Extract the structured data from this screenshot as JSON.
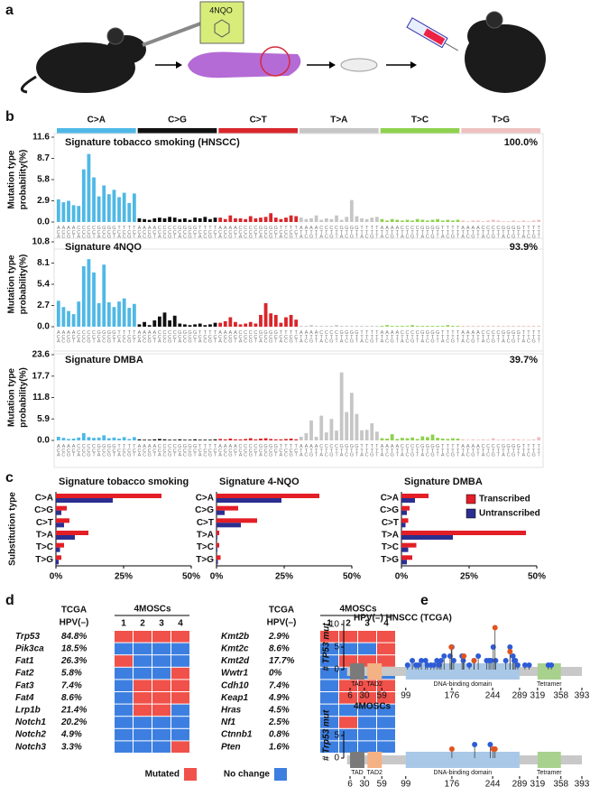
{
  "panel_labels": [
    "a",
    "b",
    "c",
    "d",
    "e"
  ],
  "illustration_label": "4NQO",
  "chart_data": [
    {
      "type": "signature",
      "ylabel": [
        "Mutation type",
        "probability(%)"
      ],
      "groups": [
        {
          "name": "C>A",
          "color": "#4fb8e6"
        },
        {
          "name": "C>G",
          "color": "#111111"
        },
        {
          "name": "C>T",
          "color": "#d9262b"
        },
        {
          "name": "T>A",
          "color": "#c6c6c6"
        },
        {
          "name": "T>C",
          "color": "#8fd14f"
        },
        {
          "name": "T>G",
          "color": "#eec1c1"
        }
      ],
      "categories": [
        "ACA",
        "ACC",
        "ACG",
        "ACT",
        "CCA",
        "CCC",
        "CCG",
        "CCT",
        "GCA",
        "GCC",
        "GCG",
        "GCT",
        "TCA",
        "TCC",
        "TCG",
        "TCT",
        "ACA",
        "ACC",
        "ACG",
        "ACT",
        "CCA",
        "CCC",
        "CCG",
        "CCT",
        "GCA",
        "GCC",
        "GCG",
        "GCT",
        "TCA",
        "TCC",
        "TCG",
        "TCT",
        "ACA",
        "ACC",
        "ACG",
        "ACT",
        "CCA",
        "CCC",
        "CCG",
        "CCT",
        "GCA",
        "GCC",
        "GCG",
        "GCT",
        "TCA",
        "TCC",
        "TCG",
        "TCT",
        "ATA",
        "ATC",
        "ATG",
        "ATT",
        "CTA",
        "CTC",
        "CTG",
        "CTT",
        "GTA",
        "GTC",
        "GTG",
        "GTT",
        "TTA",
        "TTC",
        "TTG",
        "TTT",
        "ATA",
        "ATC",
        "ATG",
        "ATT",
        "CTA",
        "CTC",
        "CTG",
        "CTT",
        "GTA",
        "GTC",
        "GTG",
        "GTT",
        "TTA",
        "TTC",
        "TTG",
        "TTT",
        "ATA",
        "ATC",
        "ATG",
        "ATT",
        "CTA",
        "CTC",
        "CTG",
        "CTT",
        "GTA",
        "GTC",
        "GTG",
        "GTT",
        "TTA",
        "TTC",
        "TTG",
        "TTT"
      ],
      "subplots": [
        {
          "title": "Signature tobacco smoking (HNSCC)",
          "annotation": "100.0%",
          "ylim": [
            0,
            11.6
          ],
          "yticks": [
            {
              "value": 0,
              "label": "0.0"
            },
            2.9,
            5.8,
            8.7,
            11.6
          ],
          "values": [
            3.1,
            2.7,
            2.9,
            2.3,
            2.2,
            7.2,
            9.3,
            6.1,
            3.5,
            5.0,
            3.8,
            4.4,
            3.4,
            4.0,
            2.6,
            3.9,
            0.5,
            0.4,
            0.3,
            0.5,
            0.6,
            0.5,
            0.7,
            0.6,
            0.4,
            0.5,
            0.3,
            0.6,
            0.5,
            0.7,
            0.4,
            0.6,
            0.6,
            0.4,
            0.9,
            0.5,
            0.5,
            0.4,
            0.8,
            0.5,
            0.6,
            0.7,
            1.2,
            0.6,
            0.4,
            0.6,
            0.9,
            0.8,
            0.6,
            0.4,
            0.5,
            0.9,
            0.3,
            0.5,
            0.4,
            0.9,
            0.3,
            0.7,
            3.0,
            0.8,
            0.5,
            0.4,
            0.6,
            0.7,
            0.4,
            0.2,
            0.4,
            0.3,
            0.2,
            0.3,
            0.2,
            0.4,
            0.3,
            0.2,
            0.3,
            0.4,
            0.2,
            0.3,
            0.2,
            0.3,
            0.2,
            0.1,
            0.2,
            0.2,
            0.1,
            0.2,
            0.3,
            0.2,
            0.1,
            0.1,
            0.2,
            0.1,
            0.2,
            0.1,
            0.2,
            0.3
          ]
        },
        {
          "title": "Signature 4NQO",
          "annotation": "93.9%",
          "ylim": [
            0,
            10.8
          ],
          "yticks": [
            {
              "value": 0,
              "label": "0.0"
            },
            2.7,
            5.4,
            8.1,
            10.8
          ],
          "values": [
            3.3,
            2.5,
            2.0,
            1.6,
            3.2,
            7.7,
            8.6,
            6.9,
            3.0,
            7.9,
            3.1,
            2.5,
            3.2,
            3.6,
            2.4,
            2.9,
            0.3,
            0.6,
            0.2,
            0.8,
            1.3,
            1.8,
            0.8,
            1.4,
            0.4,
            0.3,
            0.2,
            0.3,
            0.4,
            0.2,
            0.3,
            0.5,
            0.5,
            0.7,
            1.2,
            0.6,
            0.3,
            0.4,
            0.6,
            0.4,
            1.5,
            3.0,
            1.7,
            1.5,
            0.5,
            1.2,
            1.5,
            0.9,
            0.1,
            0.1,
            0.2,
            0.1,
            0.1,
            0.1,
            0.1,
            0.2,
            0.1,
            0.1,
            0.1,
            0.1,
            0.1,
            0.1,
            0.1,
            0.1,
            0.1,
            0.2,
            0.1,
            0.1,
            0.1,
            0.1,
            0.2,
            0.1,
            0.1,
            0.1,
            0.1,
            0.1,
            0.1,
            0.2,
            0.1,
            0.1,
            0.1,
            0.1,
            0.1,
            0.1,
            0.1,
            0.1,
            0.1,
            0.1,
            0.1,
            0.1,
            0.1,
            0.1,
            0.1,
            0.1,
            0.1,
            0.1
          ]
        },
        {
          "title": "Signature DMBA",
          "annotation": "39.7%",
          "ylim": [
            0,
            23.6
          ],
          "yticks": [
            {
              "value": 0,
              "label": "0.0"
            },
            5.9,
            11.8,
            17.7,
            23.6
          ],
          "values": [
            1.0,
            0.7,
            0.4,
            0.5,
            0.8,
            2.0,
            0.9,
            0.7,
            0.8,
            1.4,
            0.6,
            0.8,
            0.5,
            0.9,
            0.4,
            0.9,
            0.3,
            0.2,
            0.2,
            0.3,
            0.4,
            0.3,
            0.2,
            0.2,
            0.3,
            0.2,
            0.2,
            0.3,
            0.2,
            0.2,
            0.2,
            0.3,
            0.4,
            0.3,
            0.5,
            0.3,
            0.3,
            0.4,
            0.6,
            0.3,
            0.5,
            0.6,
            0.4,
            0.3,
            0.3,
            0.4,
            0.5,
            0.3,
            1.0,
            2.0,
            5.5,
            1.0,
            6.8,
            2.2,
            5.9,
            2.7,
            18.7,
            7.8,
            13.1,
            7.3,
            2.8,
            2.9,
            4.7,
            2.4,
            0.6,
            0.5,
            1.7,
            0.4,
            0.7,
            0.6,
            0.8,
            0.4,
            1.1,
            0.9,
            1.6,
            0.7,
            0.5,
            0.4,
            0.6,
            0.5,
            0.3,
            0.2,
            0.3,
            0.2,
            0.3,
            0.2,
            0.6,
            0.2,
            0.3,
            0.2,
            0.4,
            0.3,
            0.2,
            0.2,
            0.3,
            0.9
          ]
        }
      ]
    },
    {
      "type": "hbar",
      "ylabel": "Substitution type",
      "categories": [
        "C>A",
        "C>G",
        "C>T",
        "T>A",
        "T>C",
        "T>G"
      ],
      "series": [
        {
          "name": "Transcribed",
          "color": "#e31e26"
        },
        {
          "name": "Untranscribed",
          "color": "#2b2f8f"
        }
      ],
      "xlim": [
        0,
        50
      ],
      "xticks": [
        {
          "value": 0,
          "label": "0%"
        },
        {
          "value": 25,
          "label": "25%"
        },
        {
          "value": 50,
          "label": "50%"
        }
      ],
      "legend": "upper right",
      "subplots": [
        {
          "title": "Signature tobacco smoking",
          "values": [
            [
              39,
              4,
              5,
              12,
              3,
              2
            ],
            [
              21,
              2,
              3,
              7,
              1.5,
              1
            ]
          ]
        },
        {
          "title": "Signature 4-NQO",
          "values": [
            [
              38,
              8,
              15,
              1,
              1,
              1.5
            ],
            [
              24,
              3,
              9,
              0.3,
              0.3,
              0.5
            ]
          ]
        },
        {
          "title": "Signature DMBA",
          "values": [
            [
              10,
              3,
              2.5,
              46,
              5.5,
              4
            ],
            [
              5,
              2,
              1.5,
              19,
              2.5,
              2
            ]
          ]
        }
      ]
    },
    {
      "type": "heatmap",
      "col_header": "TCGA",
      "col_subheader": "HPV(–)",
      "group_label": "4MOSCs",
      "columns": [
        "1",
        "2",
        "3",
        "4"
      ],
      "mutated_color": "#f0514a",
      "unchanged_color": "#3d7fe0",
      "legend": [
        "Mutated",
        "No change"
      ],
      "tables": [
        [
          {
            "gene": "Trp53",
            "tcga": "84.8%",
            "values": [
              1,
              1,
              1,
              1
            ]
          },
          {
            "gene": "Pik3ca",
            "tcga": "18.5%",
            "values": [
              0,
              0,
              0,
              0
            ]
          },
          {
            "gene": "Fat1",
            "tcga": "26.3%",
            "values": [
              1,
              0,
              0,
              0
            ]
          },
          {
            "gene": "Fat2",
            "tcga": "5.8%",
            "values": [
              0,
              0,
              0,
              1
            ]
          },
          {
            "gene": "Fat3",
            "tcga": "7.4%",
            "values": [
              0,
              1,
              1,
              1
            ]
          },
          {
            "gene": "Fat4",
            "tcga": "8.6%",
            "values": [
              0,
              1,
              1,
              1
            ]
          },
          {
            "gene": "Lrp1b",
            "tcga": "21.4%",
            "values": [
              0,
              1,
              1,
              0
            ]
          },
          {
            "gene": "Notch1",
            "tcga": "20.2%",
            "values": [
              0,
              0,
              0,
              0
            ]
          },
          {
            "gene": "Notch2",
            "tcga": "4.9%",
            "values": [
              0,
              0,
              0,
              0
            ]
          },
          {
            "gene": "Notch3",
            "tcga": "3.3%",
            "values": [
              0,
              0,
              0,
              1
            ]
          }
        ],
        [
          {
            "gene": "Kmt2b",
            "tcga": "2.9%",
            "values": [
              1,
              1,
              1,
              1
            ]
          },
          {
            "gene": "Kmt2c",
            "tcga": "8.6%",
            "values": [
              0,
              0,
              0,
              1
            ]
          },
          {
            "gene": "Kmt2d",
            "tcga": "17.7%",
            "values": [
              0,
              1,
              1,
              1
            ]
          },
          {
            "gene": "Wwtr1",
            "tcga": "0%",
            "values": [
              0,
              0,
              0,
              0
            ]
          },
          {
            "gene": "Cdh10",
            "tcga": "7.4%",
            "values": [
              0,
              1,
              1,
              1
            ]
          },
          {
            "gene": "Keap1",
            "tcga": "4.9%",
            "values": [
              0,
              1,
              1,
              1
            ]
          },
          {
            "gene": "Hras",
            "tcga": "4.5%",
            "values": [
              0,
              0,
              0,
              0
            ]
          },
          {
            "gene": "Nf1",
            "tcga": "2.5%",
            "values": [
              0,
              1,
              0,
              0
            ]
          },
          {
            "gene": "Ctnnb1",
            "tcga": "0.8%",
            "values": [
              0,
              0,
              0,
              0
            ]
          },
          {
            "gene": "Pten",
            "tcga": "1.6%",
            "values": [
              0,
              0,
              0,
              0
            ]
          }
        ]
      ]
    },
    {
      "type": "lollipop",
      "xlim": [
        1,
        393
      ],
      "xticks": [
        6,
        30,
        59,
        99,
        176,
        244,
        289,
        319,
        358,
        393
      ],
      "backbone_color": "#c8c8c8",
      "domains": [
        {
          "name": "TAD",
          "start": 6,
          "end": 30,
          "color": "#7a7a7a"
        },
        {
          "name": "TAD2",
          "start": 35,
          "end": 59,
          "color": "#f4b183"
        },
        {
          "name": "DNA-binding domain",
          "start": 99,
          "end": 289,
          "color": "#a9c8e8"
        },
        {
          "name": "Tetramer",
          "start": 319,
          "end": 358,
          "color": "#a9d18e"
        }
      ],
      "subplots": [
        {
          "title": "HPV(–) HNSCC (TCGA)",
          "ylabel": "# TP53 mut",
          "ylim": [
            0,
            11
          ],
          "yticks": [
            0,
            5,
            10
          ],
          "series": [
            {
              "color": "#2e5bd6",
              "x": [
                102,
                110,
                116,
                120,
                125,
                132,
                135,
                141,
                146,
                151,
                155,
                158,
                163,
                173,
                176,
                179,
                193,
                195,
                205,
                213,
                220,
                234,
                238,
                241,
                245,
                249,
                266,
                273,
                278,
                280,
                282,
                286,
                298,
                305,
                337,
                342
              ],
              "values": [
                1,
                2,
                1,
                1,
                2,
                2,
                1,
                1,
                1,
                2,
                1,
                2,
                3,
                3,
                5,
                2,
                3,
                2,
                1,
                2,
                3,
                2,
                2,
                2,
                5,
                2,
                2,
                5,
                3,
                2,
                2,
                1,
                1,
                1,
                1,
                1
              ]
            },
            {
              "color": "#e0541e",
              "x": [
                175,
                196,
                213,
                248,
                273
              ],
              "values": [
                5,
                3,
                2,
                9.3,
                4
              ]
            }
          ]
        },
        {
          "title": "4MOSCs",
          "ylabel": "# Trp53 mut",
          "ylim": [
            0,
            6
          ],
          "yticks": [
            0,
            5
          ],
          "series": [
            {
              "color": "#2e5bd6",
              "x": [
                214,
                240
              ],
              "values": [
                3,
                3
              ]
            },
            {
              "color": "#e0541e",
              "x": [
                176,
                245,
                248
              ],
              "values": [
                2,
                2,
                2
              ]
            }
          ]
        }
      ]
    }
  ]
}
